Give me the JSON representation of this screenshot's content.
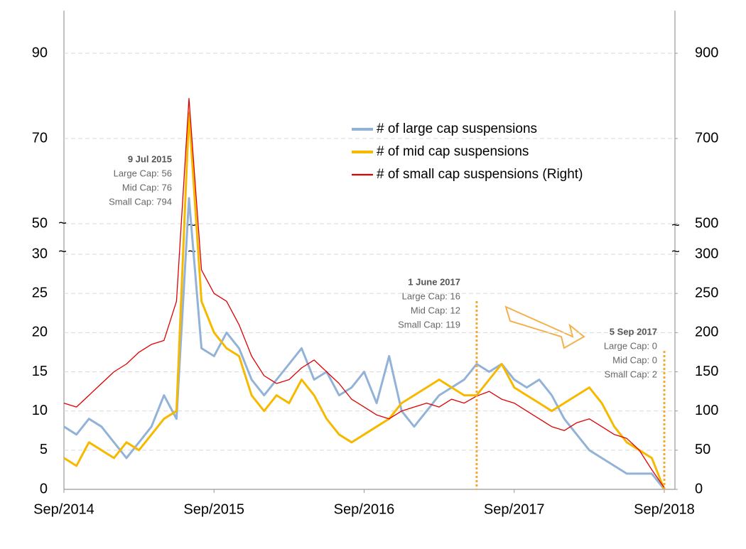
{
  "chart_data": {
    "type": "line",
    "xlim": [
      "2014-09",
      "2018-09"
    ],
    "xticks": [
      {
        "value": "2014-09",
        "label": "Sep/2014"
      },
      {
        "value": "2015-09",
        "label": "Sep/2015"
      },
      {
        "value": "2016-09",
        "label": "Sep/2016"
      },
      {
        "value": "2017-09",
        "label": "Sep/2017"
      },
      {
        "value": "2018-09",
        "label": "Sep/2018"
      }
    ],
    "panels": [
      {
        "ylim": [
          50,
          100
        ],
        "yticks": [
          50,
          70,
          90
        ],
        "y2lim": [
          500,
          1000
        ],
        "y2ticks": [
          500,
          700,
          900
        ]
      },
      {
        "ylim": [
          0,
          30
        ],
        "yticks": [
          0,
          5,
          10,
          15,
          20,
          25,
          30
        ],
        "y2lim": [
          0,
          300
        ],
        "y2ticks": [
          0,
          50,
          100,
          150,
          200,
          250,
          300
        ]
      }
    ],
    "break_symbol": "~",
    "grid": true,
    "legend": "center",
    "x": [
      "2014-09",
      "2014-10",
      "2014-11",
      "2014-12",
      "2015-01",
      "2015-02",
      "2015-03",
      "2015-04",
      "2015-05",
      "2015-06",
      "2015-07",
      "2015-08",
      "2015-09",
      "2015-10",
      "2015-11",
      "2015-12",
      "2016-01",
      "2016-02",
      "2016-03",
      "2016-04",
      "2016-05",
      "2016-06",
      "2016-07",
      "2016-08",
      "2016-09",
      "2016-10",
      "2016-11",
      "2016-12",
      "2017-01",
      "2017-02",
      "2017-03",
      "2017-04",
      "2017-05",
      "2017-06",
      "2017-07",
      "2017-08",
      "2017-09",
      "2017-10",
      "2017-11",
      "2017-12",
      "2018-01",
      "2018-02",
      "2018-03",
      "2018-04",
      "2018-05",
      "2018-06",
      "2018-07",
      "2018-08",
      "2018-09"
    ],
    "series": [
      {
        "name": "# of large cap suspensions",
        "color": "#92b2d8",
        "axis": "y",
        "values": [
          8,
          7,
          9,
          8,
          6,
          4,
          6,
          8,
          12,
          9,
          56,
          18,
          17,
          20,
          18,
          14,
          12,
          14,
          16,
          18,
          14,
          15,
          12,
          13,
          15,
          11,
          17,
          10,
          8,
          10,
          12,
          13,
          14,
          16,
          15,
          16,
          14,
          13,
          14,
          12,
          9,
          7,
          5,
          4,
          3,
          2,
          2,
          2,
          0
        ]
      },
      {
        "name": "# of mid cap suspensions",
        "color": "#f7b900",
        "axis": "y",
        "values": [
          4,
          3,
          6,
          5,
          4,
          6,
          5,
          7,
          9,
          10,
          76,
          24,
          20,
          18,
          17,
          12,
          10,
          12,
          11,
          14,
          12,
          9,
          7,
          6,
          7,
          8,
          9,
          11,
          12,
          13,
          14,
          13,
          12,
          12,
          14,
          16,
          13,
          12,
          11,
          10,
          11,
          12,
          13,
          11,
          8,
          6,
          5,
          4,
          0
        ]
      },
      {
        "name": "# of small cap suspensions (Right)",
        "color": "#e00000",
        "axis": "y2",
        "values": [
          110,
          105,
          120,
          135,
          150,
          160,
          175,
          185,
          190,
          240,
          794,
          280,
          250,
          240,
          210,
          170,
          145,
          135,
          140,
          155,
          165,
          150,
          135,
          115,
          105,
          95,
          90,
          100,
          105,
          110,
          105,
          115,
          110,
          119,
          125,
          115,
          110,
          100,
          90,
          80,
          75,
          85,
          90,
          80,
          70,
          65,
          50,
          25,
          2
        ]
      }
    ],
    "annotations": [
      {
        "x": "2015-07",
        "title": "9 Jul 2015",
        "lines": [
          "Large Cap: 56",
          "Mid Cap: 76",
          "Small Cap: 794"
        ]
      },
      {
        "x": "2017-06",
        "title": "1 June 2017",
        "lines": [
          "Large Cap: 16",
          "Mid Cap: 12",
          "Small Cap: 119"
        ]
      },
      {
        "x": "2018-09",
        "title": "5 Sep 2017",
        "lines": [
          "Large Cap: 0",
          "Mid Cap: 0",
          "Small Cap: 2"
        ]
      }
    ]
  }
}
